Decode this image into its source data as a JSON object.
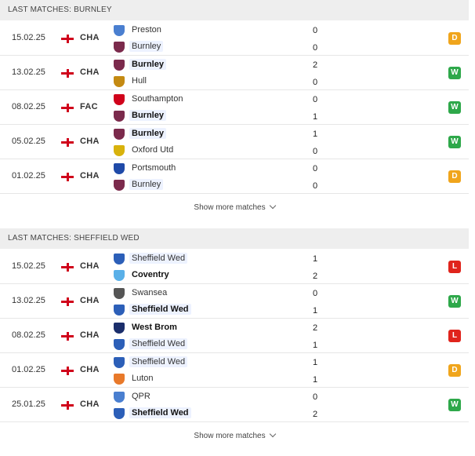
{
  "colors": {
    "win": "#2ea84a",
    "draw": "#f0a51c",
    "loss": "#e0241c",
    "header_bg": "#eeeeee",
    "highlight_bg": "#edf2ff"
  },
  "sections": [
    {
      "title": "LAST MATCHES: BURNLEY",
      "more_label": "Show more matches",
      "matches": [
        {
          "date": "15.02.25",
          "flag": "england-flag",
          "comp": "CHA",
          "home": {
            "name": "Preston",
            "crest": "#4a7fd0",
            "bold": false,
            "highlight": false
          },
          "away": {
            "name": "Burnley",
            "crest": "#7b2a4c",
            "bold": false,
            "highlight": true
          },
          "home_score": "0",
          "away_score": "0",
          "result": "D",
          "result_type": "draw"
        },
        {
          "date": "13.02.25",
          "flag": "england-flag",
          "comp": "CHA",
          "home": {
            "name": "Burnley",
            "crest": "#7b2a4c",
            "bold": true,
            "highlight": true
          },
          "away": {
            "name": "Hull",
            "crest": "#c48a12",
            "bold": false,
            "highlight": false
          },
          "home_score": "2",
          "away_score": "0",
          "result": "W",
          "result_type": "win"
        },
        {
          "date": "08.02.25",
          "flag": "england-flag",
          "comp": "FAC",
          "home": {
            "name": "Southampton",
            "crest": "#d0021b",
            "bold": false,
            "highlight": false
          },
          "away": {
            "name": "Burnley",
            "crest": "#7b2a4c",
            "bold": true,
            "highlight": true
          },
          "home_score": "0",
          "away_score": "1",
          "result": "W",
          "result_type": "win"
        },
        {
          "date": "05.02.25",
          "flag": "england-flag",
          "comp": "CHA",
          "home": {
            "name": "Burnley",
            "crest": "#7b2a4c",
            "bold": true,
            "highlight": true
          },
          "away": {
            "name": "Oxford Utd",
            "crest": "#d8b20c",
            "bold": false,
            "highlight": false
          },
          "home_score": "1",
          "away_score": "0",
          "result": "W",
          "result_type": "win"
        },
        {
          "date": "01.02.25",
          "flag": "england-flag",
          "comp": "CHA",
          "home": {
            "name": "Portsmouth",
            "crest": "#1f4aa8",
            "bold": false,
            "highlight": false
          },
          "away": {
            "name": "Burnley",
            "crest": "#7b2a4c",
            "bold": false,
            "highlight": true
          },
          "home_score": "0",
          "away_score": "0",
          "result": "D",
          "result_type": "draw"
        }
      ]
    },
    {
      "title": "LAST MATCHES: SHEFFIELD WED",
      "more_label": "Show more matches",
      "matches": [
        {
          "date": "15.02.25",
          "flag": "england-flag",
          "comp": "CHA",
          "home": {
            "name": "Sheffield Wed",
            "crest": "#2c5fb8",
            "bold": false,
            "highlight": true
          },
          "away": {
            "name": "Coventry",
            "crest": "#5ab0e8",
            "bold": true,
            "highlight": false
          },
          "home_score": "1",
          "away_score": "2",
          "result": "L",
          "result_type": "loss"
        },
        {
          "date": "13.02.25",
          "flag": "england-flag",
          "comp": "CHA",
          "home": {
            "name": "Swansea",
            "crest": "#555555",
            "bold": false,
            "highlight": false
          },
          "away": {
            "name": "Sheffield Wed",
            "crest": "#2c5fb8",
            "bold": true,
            "highlight": true
          },
          "home_score": "0",
          "away_score": "1",
          "result": "W",
          "result_type": "win"
        },
        {
          "date": "08.02.25",
          "flag": "england-flag",
          "comp": "CHA",
          "home": {
            "name": "West Brom",
            "crest": "#1b2e6b",
            "bold": true,
            "highlight": false
          },
          "away": {
            "name": "Sheffield Wed",
            "crest": "#2c5fb8",
            "bold": false,
            "highlight": true
          },
          "home_score": "2",
          "away_score": "1",
          "result": "L",
          "result_type": "loss"
        },
        {
          "date": "01.02.25",
          "flag": "england-flag",
          "comp": "CHA",
          "home": {
            "name": "Sheffield Wed",
            "crest": "#2c5fb8",
            "bold": false,
            "highlight": true
          },
          "away": {
            "name": "Luton",
            "crest": "#e8792a",
            "bold": false,
            "highlight": false
          },
          "home_score": "1",
          "away_score": "1",
          "result": "D",
          "result_type": "draw"
        },
        {
          "date": "25.01.25",
          "flag": "england-flag",
          "comp": "CHA",
          "home": {
            "name": "QPR",
            "crest": "#4a7fd0",
            "bold": false,
            "highlight": false
          },
          "away": {
            "name": "Sheffield Wed",
            "crest": "#2c5fb8",
            "bold": true,
            "highlight": true
          },
          "home_score": "0",
          "away_score": "2",
          "result": "W",
          "result_type": "win"
        }
      ]
    }
  ]
}
